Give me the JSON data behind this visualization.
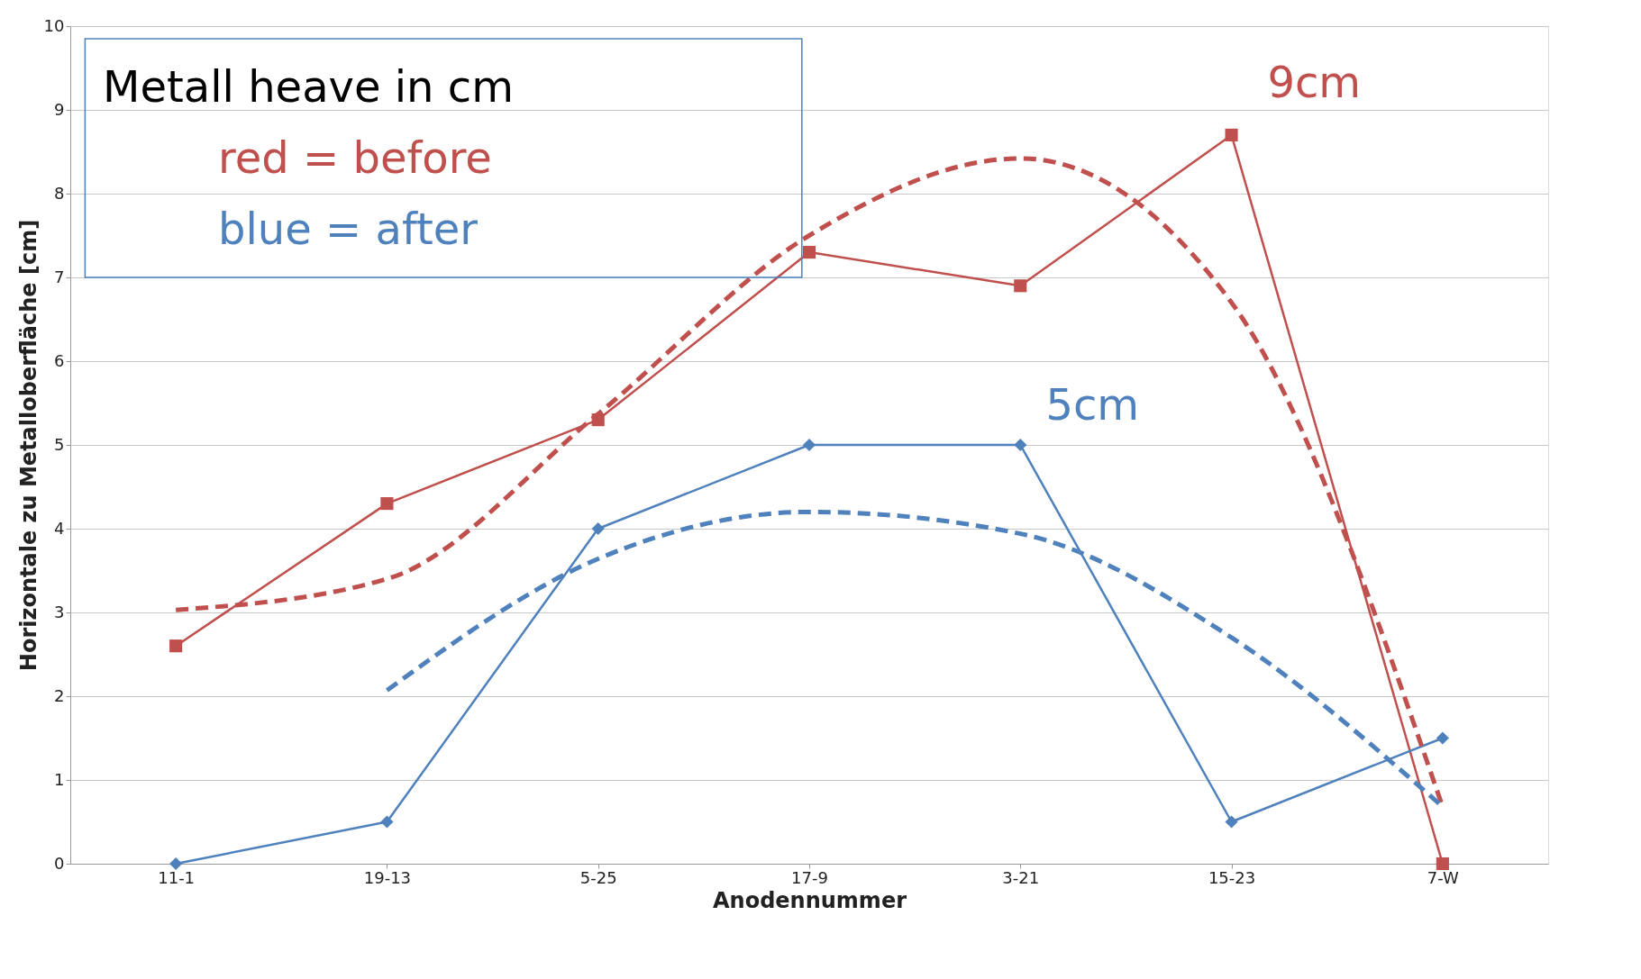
{
  "chart_data": {
    "type": "line",
    "xlabel": "Anodennummer",
    "ylabel": "Horizontale zu Metalloberfläche [cm]",
    "categories": [
      "11-1",
      "19-13",
      "5-25",
      "17-9",
      "3-21",
      "15-23",
      "7-W"
    ],
    "ylim": [
      0,
      10
    ],
    "yticks": [
      0,
      1,
      2,
      3,
      4,
      5,
      6,
      7,
      8,
      9,
      10
    ],
    "grid": "y",
    "legend": false,
    "series": [
      {
        "color": "#c0504d",
        "marker": "square",
        "line_style": "solid",
        "values": [
          2.6,
          4.3,
          5.3,
          7.3,
          6.9,
          8.7,
          0
        ]
      },
      {
        "color": "#4f81bd",
        "marker": "diamond",
        "line_style": "solid",
        "values": [
          0,
          0.5,
          4,
          5,
          5,
          0.5,
          1.5
        ]
      },
      {
        "color": "#c0504d",
        "marker": "none",
        "line_style": "dashed",
        "values": [
          3.03,
          3.4,
          5.37,
          7.5,
          8.42,
          6.7,
          0.68
        ]
      },
      {
        "color": "#4f81bd",
        "marker": "none",
        "line_style": "dashed",
        "values": [
          null,
          2.07,
          3.64,
          4.2,
          3.94,
          2.7,
          0.68
        ]
      }
    ],
    "annotations": [
      "Metall heave in cm",
      "red = before",
      "blue = after",
      "9cm",
      "5cm"
    ]
  }
}
